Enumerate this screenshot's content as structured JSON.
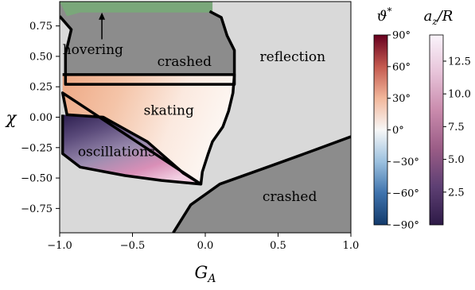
{
  "chart_data": {
    "type": "heatmap",
    "title": "",
    "xlabel": "G",
    "xlabel_sub": "A",
    "ylabel": "χ",
    "xlim": [
      -1.0,
      1.0
    ],
    "ylim": [
      -0.95,
      0.95
    ],
    "xticks": [
      -1.0,
      -0.5,
      0.0,
      0.5,
      1.0
    ],
    "xtick_labels": [
      "−1.0",
      "−0.5",
      "0.0",
      "0.5",
      "1.0"
    ],
    "yticks": [
      0.75,
      0.5,
      0.25,
      0.0,
      -0.25,
      -0.5,
      -0.75
    ],
    "ytick_labels": [
      "0.75",
      "0.50",
      "0.25",
      "0.00",
      "−0.25",
      "−0.50",
      "−0.75"
    ],
    "regions": [
      {
        "label": "hovering",
        "color": "#7aa77a",
        "annotation": "arrow"
      },
      {
        "label": "crashed",
        "color": "#8c8c8c"
      },
      {
        "label": "reflection",
        "color": "#d9d9d9"
      },
      {
        "label": "skating",
        "color": "#f0c8ae"
      },
      {
        "label": "oscillations",
        "color": "#8a6f9a"
      },
      {
        "label": "crashed",
        "color": "#8c8c8c"
      }
    ],
    "region_boundaries": {
      "hovering": [
        [
          -1.0,
          0.95
        ],
        [
          -0.95,
          0.83
        ],
        [
          -0.86,
          0.86
        ],
        [
          0.05,
          0.86
        ],
        [
          0.05,
          0.95
        ]
      ],
      "crashed_upper": [
        [
          -1.0,
          0.83
        ],
        [
          -0.92,
          0.72
        ],
        [
          -0.96,
          0.52
        ],
        [
          -0.96,
          0.27
        ],
        [
          0.2,
          0.27
        ],
        [
          0.2,
          0.55
        ],
        [
          0.15,
          0.67
        ],
        [
          0.11,
          0.82
        ],
        [
          0.03,
          0.87
        ]
      ],
      "skating": [
        [
          -0.98,
          0.35
        ],
        [
          -0.7,
          0.35
        ],
        [
          0.2,
          0.35
        ],
        [
          0.19,
          0.2
        ],
        [
          0.16,
          0.05
        ],
        [
          0.12,
          -0.08
        ],
        [
          0.05,
          -0.2
        ],
        [
          0.02,
          -0.3
        ],
        [
          -0.02,
          -0.45
        ],
        [
          -0.03,
          -0.55
        ],
        [
          -0.15,
          -0.46
        ],
        [
          -0.4,
          -0.2
        ],
        [
          -0.7,
          0.0
        ],
        [
          -0.95,
          0.02
        ],
        [
          -0.98,
          0.2
        ]
      ],
      "oscillations": [
        [
          -0.98,
          0.02
        ],
        [
          -0.7,
          0.0
        ],
        [
          -0.4,
          -0.2
        ],
        [
          -0.15,
          -0.46
        ],
        [
          -0.03,
          -0.55
        ],
        [
          -0.3,
          -0.52
        ],
        [
          -0.55,
          -0.48
        ],
        [
          -0.86,
          -0.41
        ],
        [
          -0.98,
          -0.3
        ]
      ],
      "crashed_lower": [
        [
          -0.22,
          -0.95
        ],
        [
          -0.1,
          -0.72
        ],
        [
          0.1,
          -0.55
        ],
        [
          0.45,
          -0.4
        ],
        [
          0.75,
          -0.27
        ],
        [
          1.0,
          -0.16
        ],
        [
          1.0,
          -0.95
        ]
      ]
    },
    "colorbars": [
      {
        "label": "ϑ",
        "label_sup": "*",
        "cmap": [
          "#133a6b",
          "#3f73ad",
          "#9cc1df",
          "#f7f7f7",
          "#f2b79b",
          "#c45a4f",
          "#67001f"
        ],
        "range": [
          -90,
          90
        ],
        "ticks": [
          90,
          60,
          30,
          0,
          -30,
          -60,
          -90
        ],
        "tick_labels": [
          "90°",
          "60°",
          "30°",
          "0°",
          "−30°",
          "−60°",
          "−90°"
        ]
      },
      {
        "label": "a",
        "label_sub": "z",
        "label_rest": "/R",
        "cmap": [
          "#2e1a47",
          "#5d3f73",
          "#9a5c86",
          "#c98aac",
          "#e7c3d9",
          "#faf4fb"
        ],
        "range": [
          0,
          14.5
        ],
        "ticks": [
          12.5,
          10.0,
          7.5,
          5.0,
          2.5
        ],
        "tick_labels": [
          "12.5",
          "10.0",
          "7.5",
          "5.0",
          "2.5"
        ]
      }
    ]
  }
}
